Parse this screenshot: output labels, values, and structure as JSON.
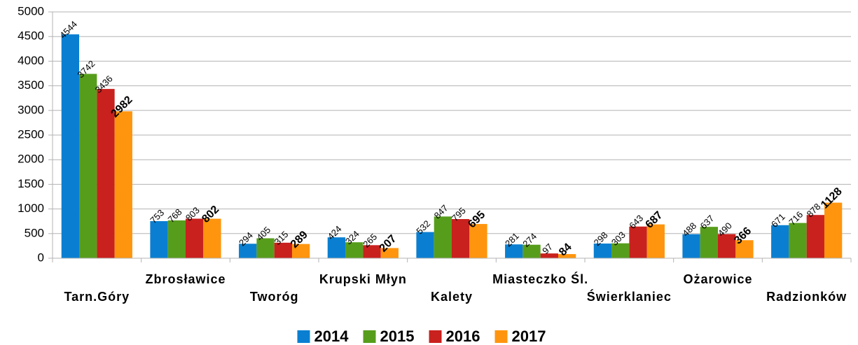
{
  "chart_data": {
    "type": "bar",
    "categories": [
      "Tarn.Góry",
      "Zbrosławice",
      "Tworóg",
      "Krupski Młyn",
      "Kalety",
      "Miasteczko Śl.",
      "Świerklaniec",
      "Ożarowice",
      "Radzionków"
    ],
    "series": [
      {
        "name": "2014",
        "color": "#0a7fd1",
        "values": [
          4544,
          753,
          294,
          424,
          532,
          281,
          298,
          488,
          671
        ]
      },
      {
        "name": "2015",
        "color": "#579d1c",
        "values": [
          3742,
          768,
          405,
          324,
          847,
          274,
          303,
          637,
          716
        ]
      },
      {
        "name": "2016",
        "color": "#c9211e",
        "values": [
          3436,
          803,
          315,
          265,
          795,
          97,
          643,
          490,
          878
        ]
      },
      {
        "name": "2017",
        "color": "#ff950e",
        "values": [
          2982,
          802,
          289,
          207,
          695,
          84,
          687,
          366,
          1128
        ]
      }
    ],
    "ylim": [
      0,
      5000
    ],
    "yticks": [
      0,
      500,
      1000,
      1500,
      2000,
      2500,
      3000,
      3500,
      4000,
      4500,
      5000
    ],
    "grid": true,
    "legend": "bottom"
  }
}
